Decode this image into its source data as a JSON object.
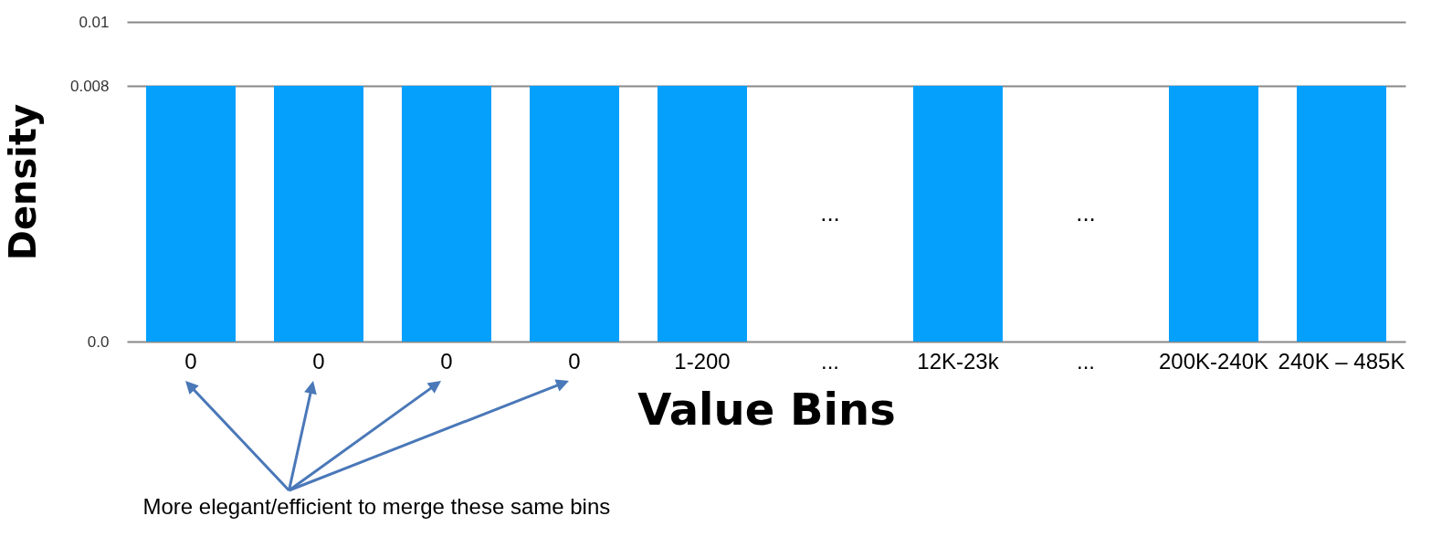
{
  "chart_data": {
    "type": "bar",
    "title": "More elegant/efficient to merge these same bins",
    "xlabel": "Value Bins",
    "ylabel": "Density",
    "categories": [
      "0",
      "0",
      "0",
      "0",
      "1-200",
      "...",
      "12K-23k",
      "...",
      "200K-240K",
      "240K – 485K"
    ],
    "values": [
      0.008,
      0.008,
      0.008,
      0.008,
      0.008,
      null,
      0.008,
      null,
      0.008,
      0.008
    ],
    "color": "#04a0fc",
    "ylim": [
      0,
      0.01
    ],
    "yticks": [
      {
        "value": 0,
        "label": "0.0"
      },
      0.008,
      0.01
    ],
    "grid": "y",
    "annotations": [
      "...",
      "..."
    ]
  }
}
